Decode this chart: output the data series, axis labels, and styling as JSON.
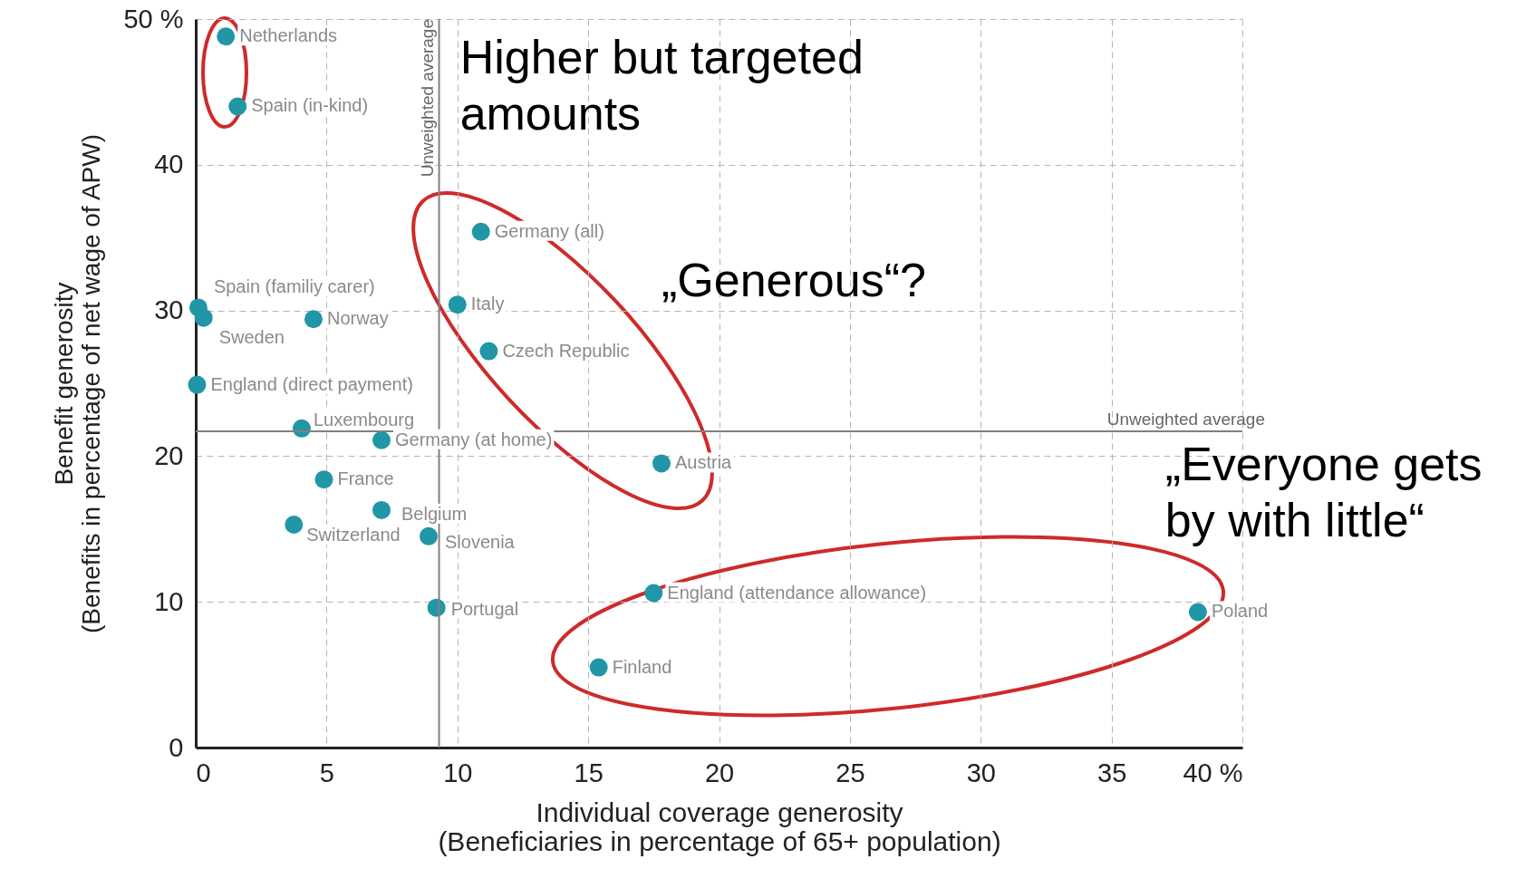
{
  "chart_data": {
    "type": "scatter",
    "xlabel": "Individual coverage generosity\n(Beneficiaries in percentage of 65+ population)",
    "ylabel": "Benefit generosity\n(Benefits in percentage of net wage of APW)",
    "xlim": [
      0,
      40
    ],
    "ylim": [
      0,
      50
    ],
    "xticks": [
      0,
      5,
      10,
      15,
      20,
      25,
      30,
      35,
      {
        "value": 40,
        "label": "40 %"
      }
    ],
    "yticks": [
      0,
      10,
      20,
      30,
      40,
      {
        "value": 50,
        "label": "50 %"
      }
    ],
    "grid": true,
    "marker": "circle",
    "series": [
      {
        "color": "#2196a6",
        "x": [
          1.15,
          1.6,
          10.9,
          0.1,
          0.3,
          4.5,
          10.0,
          11.2,
          0.05,
          4.05,
          7.1,
          17.8,
          4.9,
          7.1,
          3.75,
          8.9,
          9.2,
          17.5,
          15.4,
          38.3
        ],
        "values": [
          48.8,
          44.0,
          35.4,
          30.2,
          29.5,
          29.4,
          30.4,
          27.2,
          24.9,
          21.9,
          21.1,
          19.5,
          18.4,
          16.3,
          15.3,
          14.5,
          9.6,
          10.6,
          5.5,
          9.3
        ]
      }
    ],
    "ref_lines": [
      {
        "axis": "x",
        "value": 9.3,
        "label": "Unweighted average",
        "color": "#808080"
      },
      {
        "axis": "y",
        "value": 21.7,
        "label": "Unweighted average",
        "color": "#808080"
      }
    ],
    "annotations": [
      {
        "text": "Netherlands",
        "x": 1.15,
        "y": 48.8
      },
      {
        "text": "Spain (in-kind)",
        "x": 1.6,
        "y": 44.0
      },
      {
        "text": "Germany (all)",
        "x": 10.9,
        "y": 35.4
      },
      {
        "text": "Spain (familiy carer)",
        "x": 0.1,
        "y": 30.2
      },
      {
        "text": "Sweden",
        "x": 0.3,
        "y": 29.5
      },
      {
        "text": "Norway",
        "x": 4.5,
        "y": 29.4
      },
      {
        "text": "Italy",
        "x": 10.0,
        "y": 30.4
      },
      {
        "text": "Czech Republic",
        "x": 11.2,
        "y": 27.2
      },
      {
        "text": "England (direct payment)",
        "x": 0.05,
        "y": 24.9
      },
      {
        "text": "Luxembourg",
        "x": 4.05,
        "y": 21.9
      },
      {
        "text": "Germany (at home)",
        "x": 7.1,
        "y": 21.1
      },
      {
        "text": "Austria",
        "x": 17.8,
        "y": 19.5
      },
      {
        "text": "France",
        "x": 4.9,
        "y": 18.4
      },
      {
        "text": "Belgium",
        "x": 7.1,
        "y": 16.3
      },
      {
        "text": "Switzerland",
        "x": 3.75,
        "y": 15.3
      },
      {
        "text": "Slovenia",
        "x": 8.9,
        "y": 14.5
      },
      {
        "text": "Portugal",
        "x": 9.2,
        "y": 9.6
      },
      {
        "text": "England (attendance allowance)",
        "x": 17.5,
        "y": 10.6
      },
      {
        "text": "Finland",
        "x": 15.4,
        "y": 5.5
      },
      {
        "text": "Poland",
        "x": 38.3,
        "y": 9.3
      },
      "Higher but targeted\namounts",
      "„Generous“?",
      "„Everyone gets\nby with little“"
    ]
  }
}
